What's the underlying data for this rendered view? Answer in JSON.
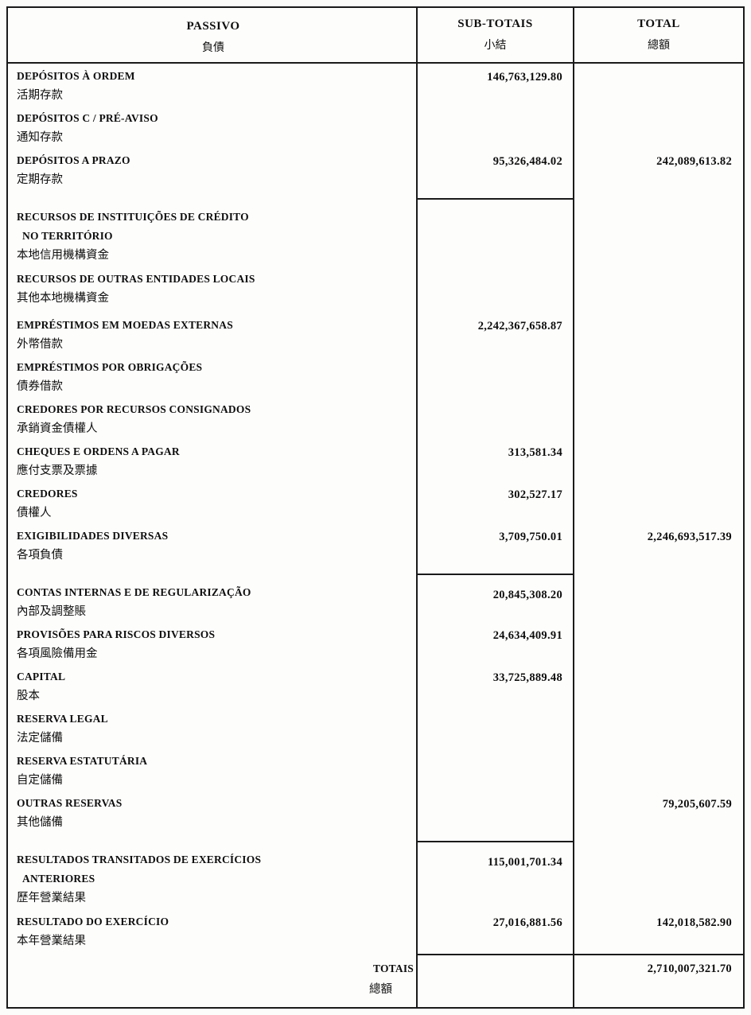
{
  "document": {
    "header": {
      "passivo_pt": "PASSIVO",
      "passivo_zh": "負債",
      "subtotais_pt": "SUB-TOTAIS",
      "subtotais_zh": "小結",
      "total_pt": "TOTAL",
      "total_zh": "總額"
    },
    "rows": [
      {
        "pt1": "DEPÓSITOS À ORDEM",
        "zh": "活期存款",
        "subtotal": "146,763,129.80",
        "total": ""
      },
      {
        "pt1": "DEPÓSITOS C / PRÉ-AVISO",
        "zh": "通知存款",
        "subtotal": "",
        "total": ""
      },
      {
        "pt1": "DEPÓSITOS A PRAZO",
        "zh": "定期存款",
        "subtotal": "95,326,484.02",
        "total": "242,089,613.82"
      },
      {
        "pt1": "RECURSOS DE INSTITUIÇÕES DE CRÉDITO",
        "pt2": "NO TERRITÓRIO",
        "zh": "本地信用機構資金",
        "subtotal": "",
        "total": ""
      },
      {
        "pt1": "RECURSOS DE OUTRAS ENTIDADES LOCAIS",
        "zh": "其他本地機構資金",
        "subtotal": "",
        "total": ""
      },
      {
        "pt1": "EMPRÉSTIMOS EM MOEDAS EXTERNAS",
        "zh": "外幣借款",
        "subtotal": "2,242,367,658.87",
        "total": ""
      },
      {
        "pt1": "EMPRÉSTIMOS POR OBRIGAÇÕES",
        "zh": "債券借款",
        "subtotal": "",
        "total": ""
      },
      {
        "pt1": "CREDORES POR RECURSOS CONSIGNADOS",
        "zh": "承銷資金債權人",
        "subtotal": "",
        "total": ""
      },
      {
        "pt1": "CHEQUES E ORDENS A PAGAR",
        "zh": "應付支票及票據",
        "subtotal": "313,581.34",
        "total": ""
      },
      {
        "pt1": "CREDORES",
        "zh": "債權人",
        "subtotal": "302,527.17",
        "total": ""
      },
      {
        "pt1": "EXIGIBILIDADES DIVERSAS",
        "zh": "各項負債",
        "subtotal": "3,709,750.01",
        "total": "2,246,693,517.39"
      },
      {
        "pt1": "CONTAS INTERNAS E DE REGULARIZAÇÃO",
        "zh": "內部及調整賬",
        "subtotal": "20,845,308.20",
        "total": ""
      },
      {
        "pt1": "PROVISÕES PARA RISCOS DIVERSOS",
        "zh": "各項風險備用金",
        "subtotal": "24,634,409.91",
        "total": ""
      },
      {
        "pt1": "CAPITAL",
        "zh": "股本",
        "subtotal": "33,725,889.48",
        "total": ""
      },
      {
        "pt1": "RESERVA LEGAL",
        "zh": "法定儲備",
        "subtotal": "",
        "total": ""
      },
      {
        "pt1": "RESERVA ESTATUTÁRIA",
        "zh": "自定儲備",
        "subtotal": "",
        "total": ""
      },
      {
        "pt1": "OUTRAS RESERVAS",
        "zh": "其他儲備",
        "subtotal": "",
        "total": "79,205,607.59"
      },
      {
        "pt1": "RESULTADOS TRANSITADOS DE EXERCÍCIOS",
        "pt2": "ANTERIORES",
        "zh": "歷年營業結果",
        "subtotal": "115,001,701.34",
        "total": ""
      },
      {
        "pt1": "RESULTADO DO EXERCÍCIO",
        "zh": "本年營業結果",
        "subtotal": "27,016,881.56",
        "total": "142,018,582.90"
      }
    ],
    "totals": {
      "label_pt": "TOTAIS",
      "label_zh": "總額",
      "total": "2,710,007,321.70"
    }
  }
}
